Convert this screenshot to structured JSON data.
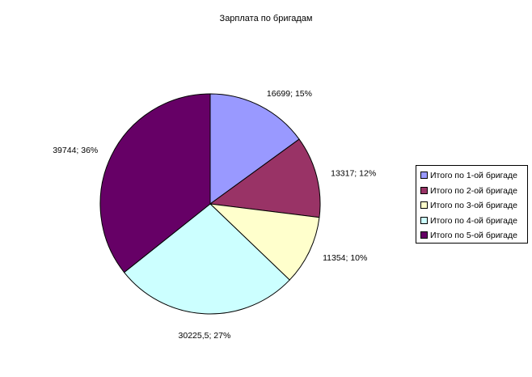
{
  "chart_data": {
    "type": "pie",
    "title": "Зарплата по бригадам",
    "categories": [
      "Итого по 1-ой бригаде",
      "Итого по 2-ой бригаде",
      "Итого по 3-ой бригаде",
      "Итого по 4-ой бригаде",
      "Итого по 5-ой бригаде"
    ],
    "values": [
      16699,
      13317,
      11354,
      30225.5,
      39744
    ],
    "data_labels": [
      "16699; 15%",
      "13317; 12%",
      "11354; 10%",
      "30225,5; 27%",
      "39744; 36%"
    ],
    "colors": [
      "#9999ff",
      "#993366",
      "#ffffcc",
      "#ccffff",
      "#660066"
    ],
    "legend_placement": "right",
    "start": "12 o'clock, clockwise"
  }
}
